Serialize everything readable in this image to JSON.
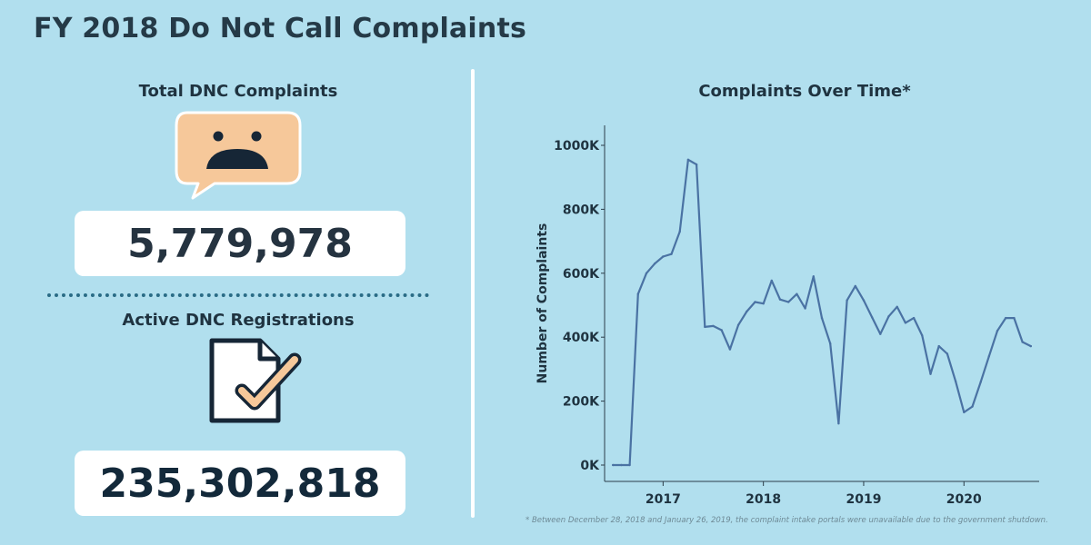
{
  "title": "FY 2018 Do Not Call Complaints",
  "left": {
    "complaints_label": "Total DNC Complaints",
    "complaints_value": "5,779,978",
    "registrations_label": "Active DNC Registrations",
    "registrations_value": "235,302,818"
  },
  "icons": {
    "complaint": "sad-face-speech-bubble-icon",
    "registration": "document-checkmark-icon"
  },
  "colors": {
    "background": "#b1dfee",
    "line": "#4a72a3",
    "bubble": "#f6c89a",
    "text": "#1f3340"
  },
  "chart_data": {
    "type": "line",
    "title": "Complaints Over Time*",
    "xlabel": "",
    "ylabel": "Number of Complaints",
    "ylim": [
      0,
      1000000
    ],
    "xlim": [
      "2016-06",
      "2020-10"
    ],
    "y_ticks": [
      "0K",
      "200K",
      "400K",
      "600K",
      "800K",
      "1000K"
    ],
    "x_ticks": [
      "2017",
      "2018",
      "2019",
      "2020"
    ],
    "grid": false,
    "series": [
      {
        "values": [
          {
            "x": "2016-07",
            "y": 0
          },
          {
            "x": "2016-08",
            "y": 0
          },
          {
            "x": "2016-09",
            "y": 0
          },
          {
            "x": "2016-10",
            "y": 535000
          },
          {
            "x": "2016-11",
            "y": 600000
          },
          {
            "x": "2016-12",
            "y": 630000
          },
          {
            "x": "2017-01",
            "y": 652000
          },
          {
            "x": "2017-02",
            "y": 660000
          },
          {
            "x": "2017-03",
            "y": 730000
          },
          {
            "x": "2017-04",
            "y": 955000
          },
          {
            "x": "2017-05",
            "y": 940000
          },
          {
            "x": "2017-06",
            "y": 432000
          },
          {
            "x": "2017-07",
            "y": 435000
          },
          {
            "x": "2017-08",
            "y": 422000
          },
          {
            "x": "2017-09",
            "y": 362000
          },
          {
            "x": "2017-10",
            "y": 438000
          },
          {
            "x": "2017-11",
            "y": 480000
          },
          {
            "x": "2017-12",
            "y": 510000
          },
          {
            "x": "2018-01",
            "y": 505000
          },
          {
            "x": "2018-02",
            "y": 577000
          },
          {
            "x": "2018-03",
            "y": 518000
          },
          {
            "x": "2018-04",
            "y": 510000
          },
          {
            "x": "2018-05",
            "y": 535000
          },
          {
            "x": "2018-06",
            "y": 490000
          },
          {
            "x": "2018-07",
            "y": 590000
          },
          {
            "x": "2018-08",
            "y": 460000
          },
          {
            "x": "2018-09",
            "y": 380000
          },
          {
            "x": "2018-10",
            "y": 130000
          },
          {
            "x": "2018-11",
            "y": 515000
          },
          {
            "x": "2018-12",
            "y": 560000
          },
          {
            "x": "2019-01",
            "y": 515000
          },
          {
            "x": "2019-02",
            "y": 462000
          },
          {
            "x": "2019-03",
            "y": 410000
          },
          {
            "x": "2019-04",
            "y": 465000
          },
          {
            "x": "2019-05",
            "y": 495000
          },
          {
            "x": "2019-06",
            "y": 445000
          },
          {
            "x": "2019-07",
            "y": 460000
          },
          {
            "x": "2019-08",
            "y": 405000
          },
          {
            "x": "2019-09",
            "y": 285000
          },
          {
            "x": "2019-10",
            "y": 372000
          },
          {
            "x": "2019-11",
            "y": 348000
          },
          {
            "x": "2019-12",
            "y": 262000
          },
          {
            "x": "2020-01",
            "y": 165000
          },
          {
            "x": "2020-02",
            "y": 183000
          },
          {
            "x": "2020-03",
            "y": 260000
          },
          {
            "x": "2020-04",
            "y": 340000
          },
          {
            "x": "2020-05",
            "y": 420000
          },
          {
            "x": "2020-06",
            "y": 460000
          },
          {
            "x": "2020-07",
            "y": 460000
          },
          {
            "x": "2020-08",
            "y": 385000
          },
          {
            "x": "2020-09",
            "y": 372000
          }
        ]
      }
    ]
  },
  "footnote": "* Between December 28, 2018 and January 26, 2019, the complaint intake portals were unavailable due to the government shutdown."
}
